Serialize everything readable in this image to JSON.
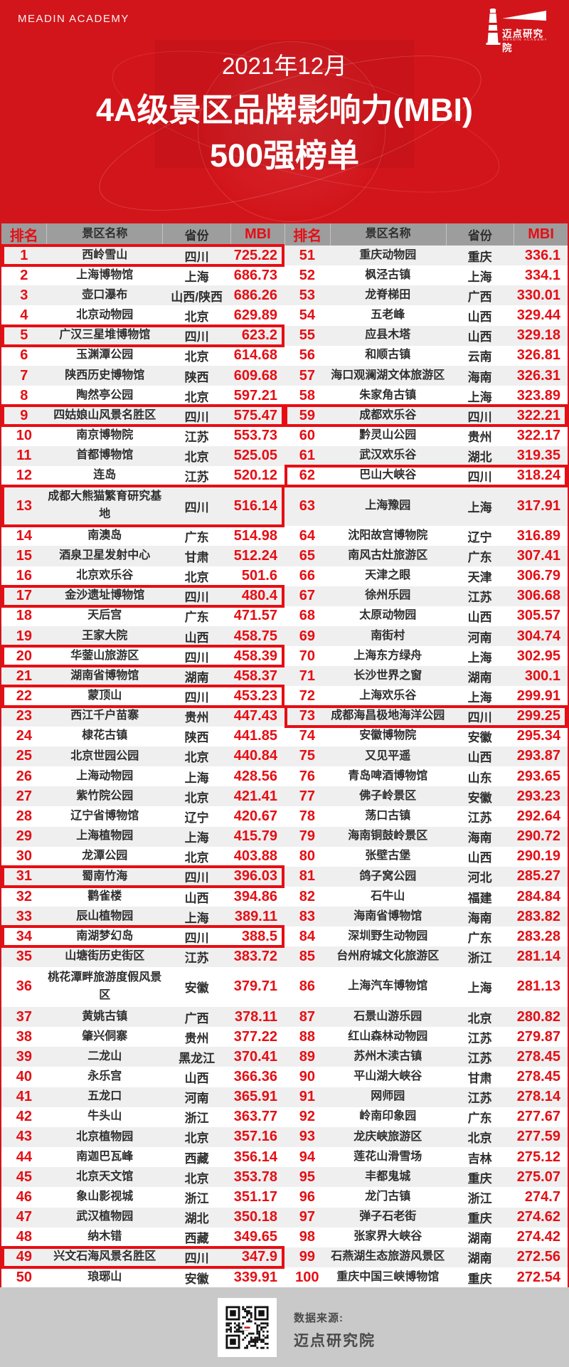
{
  "brand": {
    "academy": "MEADIN ACADEMY",
    "logo_text": "迈点研究院",
    "logo_sub": "MEADIN ACADEMY"
  },
  "title": {
    "period": "2021年12月",
    "line1": "4A级景区品牌影响力(MBI)",
    "line2": "500强榜单"
  },
  "icons": {
    "logo": "lighthouse-logo",
    "qr": "qr-code"
  },
  "colors": {
    "background_red": "#d2151b",
    "accent_red": "#e60e14",
    "header_gray": "#9d9d9d",
    "row_stripe": "#efefef",
    "footer_gray": "#c9c9c9",
    "text_dark": "#2e2e2e",
    "footer_text": "#4a4a4a"
  },
  "table": {
    "headers": {
      "rank": "排名",
      "name": "景区名称",
      "province": "省份",
      "mbi": "MBI"
    },
    "left": [
      {
        "rank": "1",
        "name": "西岭雪山",
        "province": "四川",
        "mbi": "725.22",
        "hl": true
      },
      {
        "rank": "2",
        "name": "上海博物馆",
        "province": "上海",
        "mbi": "686.73"
      },
      {
        "rank": "3",
        "name": "壶口瀑布",
        "province": "山西/陕西",
        "mbi": "686.26"
      },
      {
        "rank": "4",
        "name": "北京动物园",
        "province": "北京",
        "mbi": "629.89"
      },
      {
        "rank": "5",
        "name": "广汉三星堆博物馆",
        "province": "四川",
        "mbi": "623.2",
        "hl": true
      },
      {
        "rank": "6",
        "name": "玉渊潭公园",
        "province": "北京",
        "mbi": "614.68"
      },
      {
        "rank": "7",
        "name": "陕西历史博物馆",
        "province": "陕西",
        "mbi": "609.68"
      },
      {
        "rank": "8",
        "name": "陶然亭公园",
        "province": "北京",
        "mbi": "597.21"
      },
      {
        "rank": "9",
        "name": "四姑娘山风景名胜区",
        "province": "四川",
        "mbi": "575.47",
        "hl": true
      },
      {
        "rank": "10",
        "name": "南京博物院",
        "province": "江苏",
        "mbi": "553.73"
      },
      {
        "rank": "11",
        "name": "首都博物馆",
        "province": "北京",
        "mbi": "525.05"
      },
      {
        "rank": "12",
        "name": "连岛",
        "province": "江苏",
        "mbi": "520.12"
      },
      {
        "rank": "13",
        "name": "成都大熊猫繁育研究基地",
        "province": "四川",
        "mbi": "516.14",
        "hl": true
      },
      {
        "rank": "14",
        "name": "南澳岛",
        "province": "广东",
        "mbi": "514.98"
      },
      {
        "rank": "15",
        "name": "酒泉卫星发射中心",
        "province": "甘肃",
        "mbi": "512.24"
      },
      {
        "rank": "16",
        "name": "北京欢乐谷",
        "province": "北京",
        "mbi": "501.6"
      },
      {
        "rank": "17",
        "name": "金沙遗址博物馆",
        "province": "四川",
        "mbi": "480.4",
        "hl": true
      },
      {
        "rank": "18",
        "name": "天后宫",
        "province": "广东",
        "mbi": "471.57"
      },
      {
        "rank": "19",
        "name": "王家大院",
        "province": "山西",
        "mbi": "458.75"
      },
      {
        "rank": "20",
        "name": "华蓥山旅游区",
        "province": "四川",
        "mbi": "458.39",
        "hl": true
      },
      {
        "rank": "21",
        "name": "湖南省博物馆",
        "province": "湖南",
        "mbi": "458.37"
      },
      {
        "rank": "22",
        "name": "蒙顶山",
        "province": "四川",
        "mbi": "453.23",
        "hl": true
      },
      {
        "rank": "23",
        "name": "西江千户苗寨",
        "province": "贵州",
        "mbi": "447.43"
      },
      {
        "rank": "24",
        "name": "棣花古镇",
        "province": "陕西",
        "mbi": "441.85"
      },
      {
        "rank": "25",
        "name": "北京世园公园",
        "province": "北京",
        "mbi": "440.84"
      },
      {
        "rank": "26",
        "name": "上海动物园",
        "province": "上海",
        "mbi": "428.56"
      },
      {
        "rank": "27",
        "name": "紫竹院公园",
        "province": "北京",
        "mbi": "421.41"
      },
      {
        "rank": "28",
        "name": "辽宁省博物馆",
        "province": "辽宁",
        "mbi": "420.67"
      },
      {
        "rank": "29",
        "name": "上海植物园",
        "province": "上海",
        "mbi": "415.79"
      },
      {
        "rank": "30",
        "name": "龙潭公园",
        "province": "北京",
        "mbi": "403.88"
      },
      {
        "rank": "31",
        "name": "蜀南竹海",
        "province": "四川",
        "mbi": "396.03",
        "hl": true
      },
      {
        "rank": "32",
        "name": "鹳雀楼",
        "province": "山西",
        "mbi": "394.86"
      },
      {
        "rank": "33",
        "name": "辰山植物园",
        "province": "上海",
        "mbi": "389.11"
      },
      {
        "rank": "34",
        "name": "南湖梦幻岛",
        "province": "四川",
        "mbi": "388.5",
        "hl": true
      },
      {
        "rank": "35",
        "name": "山塘街历史街区",
        "province": "江苏",
        "mbi": "383.72"
      },
      {
        "rank": "36",
        "name": "桃花潭畔旅游度假风景区",
        "province": "安徽",
        "mbi": "379.71"
      },
      {
        "rank": "37",
        "name": "黄姚古镇",
        "province": "广西",
        "mbi": "378.11"
      },
      {
        "rank": "38",
        "name": "肇兴侗寨",
        "province": "贵州",
        "mbi": "377.22"
      },
      {
        "rank": "39",
        "name": "二龙山",
        "province": "黑龙江",
        "mbi": "370.41"
      },
      {
        "rank": "40",
        "name": "永乐宫",
        "province": "山西",
        "mbi": "366.36"
      },
      {
        "rank": "41",
        "name": "五龙口",
        "province": "河南",
        "mbi": "365.91"
      },
      {
        "rank": "42",
        "name": "牛头山",
        "province": "浙江",
        "mbi": "363.77"
      },
      {
        "rank": "43",
        "name": "北京植物园",
        "province": "北京",
        "mbi": "357.16"
      },
      {
        "rank": "44",
        "name": "南迦巴瓦峰",
        "province": "西藏",
        "mbi": "356.14"
      },
      {
        "rank": "45",
        "name": "北京天文馆",
        "province": "北京",
        "mbi": "353.78"
      },
      {
        "rank": "46",
        "name": "象山影视城",
        "province": "浙江",
        "mbi": "351.17"
      },
      {
        "rank": "47",
        "name": "武汉植物园",
        "province": "湖北",
        "mbi": "350.18"
      },
      {
        "rank": "48",
        "name": "纳木错",
        "province": "西藏",
        "mbi": "349.65"
      },
      {
        "rank": "49",
        "name": "兴文石海风景名胜区",
        "province": "四川",
        "mbi": "347.9",
        "hl": true
      },
      {
        "rank": "50",
        "name": "琅琊山",
        "province": "安徽",
        "mbi": "339.91"
      }
    ],
    "right": [
      {
        "rank": "51",
        "name": "重庆动物园",
        "province": "重庆",
        "mbi": "336.1"
      },
      {
        "rank": "52",
        "name": "枫泾古镇",
        "province": "上海",
        "mbi": "334.1"
      },
      {
        "rank": "53",
        "name": "龙脊梯田",
        "province": "广西",
        "mbi": "330.01"
      },
      {
        "rank": "54",
        "name": "五老峰",
        "province": "山西",
        "mbi": "329.44"
      },
      {
        "rank": "55",
        "name": "应县木塔",
        "province": "山西",
        "mbi": "329.18"
      },
      {
        "rank": "56",
        "name": "和顺古镇",
        "province": "云南",
        "mbi": "326.81"
      },
      {
        "rank": "57",
        "name": "海口观澜湖文体旅游区",
        "province": "海南",
        "mbi": "326.31"
      },
      {
        "rank": "58",
        "name": "朱家角古镇",
        "province": "上海",
        "mbi": "323.89"
      },
      {
        "rank": "59",
        "name": "成都欢乐谷",
        "province": "四川",
        "mbi": "322.21",
        "hl": true
      },
      {
        "rank": "60",
        "name": "黔灵山公园",
        "province": "贵州",
        "mbi": "322.17"
      },
      {
        "rank": "61",
        "name": "武汉欢乐谷",
        "province": "湖北",
        "mbi": "319.35"
      },
      {
        "rank": "62",
        "name": "巴山大峡谷",
        "province": "四川",
        "mbi": "318.24",
        "hl": true
      },
      {
        "rank": "63",
        "name": "上海豫园",
        "province": "上海",
        "mbi": "317.91"
      },
      {
        "rank": "64",
        "name": "沈阳故宫博物院",
        "province": "辽宁",
        "mbi": "316.89"
      },
      {
        "rank": "65",
        "name": "南风古灶旅游区",
        "province": "广东",
        "mbi": "307.41"
      },
      {
        "rank": "66",
        "name": "天津之眼",
        "province": "天津",
        "mbi": "306.79"
      },
      {
        "rank": "67",
        "name": "徐州乐园",
        "province": "江苏",
        "mbi": "306.68"
      },
      {
        "rank": "68",
        "name": "太原动物园",
        "province": "山西",
        "mbi": "305.57"
      },
      {
        "rank": "69",
        "name": "南街村",
        "province": "河南",
        "mbi": "304.74"
      },
      {
        "rank": "70",
        "name": "上海东方绿舟",
        "province": "上海",
        "mbi": "302.95"
      },
      {
        "rank": "71",
        "name": "长沙世界之窗",
        "province": "湖南",
        "mbi": "300.1"
      },
      {
        "rank": "72",
        "name": "上海欢乐谷",
        "province": "上海",
        "mbi": "299.91"
      },
      {
        "rank": "73",
        "name": "成都海昌极地海洋公园",
        "province": "四川",
        "mbi": "299.25",
        "hl": true
      },
      {
        "rank": "74",
        "name": "安徽博物院",
        "province": "安徽",
        "mbi": "295.34"
      },
      {
        "rank": "75",
        "name": "又见平遥",
        "province": "山西",
        "mbi": "293.87"
      },
      {
        "rank": "76",
        "name": "青岛啤酒博物馆",
        "province": "山东",
        "mbi": "293.65"
      },
      {
        "rank": "77",
        "name": "佛子岭景区",
        "province": "安徽",
        "mbi": "293.23"
      },
      {
        "rank": "78",
        "name": "荡口古镇",
        "province": "江苏",
        "mbi": "292.64"
      },
      {
        "rank": "79",
        "name": "海南铜鼓岭景区",
        "province": "海南",
        "mbi": "290.72"
      },
      {
        "rank": "80",
        "name": "张壁古堡",
        "province": "山西",
        "mbi": "290.19"
      },
      {
        "rank": "81",
        "name": "鸽子窝公园",
        "province": "河北",
        "mbi": "285.27"
      },
      {
        "rank": "82",
        "name": "石牛山",
        "province": "福建",
        "mbi": "284.84"
      },
      {
        "rank": "83",
        "name": "海南省博物馆",
        "province": "海南",
        "mbi": "283.82"
      },
      {
        "rank": "84",
        "name": "深圳野生动物园",
        "province": "广东",
        "mbi": "283.28"
      },
      {
        "rank": "85",
        "name": "台州府城文化旅游区",
        "province": "浙江",
        "mbi": "281.14"
      },
      {
        "rank": "86",
        "name": "上海汽车博物馆",
        "province": "上海",
        "mbi": "281.13"
      },
      {
        "rank": "87",
        "name": "石景山游乐园",
        "province": "北京",
        "mbi": "280.82"
      },
      {
        "rank": "88",
        "name": "红山森林动物园",
        "province": "江苏",
        "mbi": "279.87"
      },
      {
        "rank": "89",
        "name": "苏州木渎古镇",
        "province": "江苏",
        "mbi": "278.45"
      },
      {
        "rank": "90",
        "name": "平山湖大峡谷",
        "province": "甘肃",
        "mbi": "278.45"
      },
      {
        "rank": "91",
        "name": "网师园",
        "province": "江苏",
        "mbi": "278.14"
      },
      {
        "rank": "92",
        "name": "岭南印象园",
        "province": "广东",
        "mbi": "277.67"
      },
      {
        "rank": "93",
        "name": "龙庆峡旅游区",
        "province": "北京",
        "mbi": "277.59"
      },
      {
        "rank": "94",
        "name": "莲花山滑雪场",
        "province": "吉林",
        "mbi": "275.12"
      },
      {
        "rank": "95",
        "name": "丰都鬼城",
        "province": "重庆",
        "mbi": "275.07"
      },
      {
        "rank": "96",
        "name": "龙门古镇",
        "province": "浙江",
        "mbi": "274.7"
      },
      {
        "rank": "97",
        "name": "弹子石老街",
        "province": "重庆",
        "mbi": "274.62"
      },
      {
        "rank": "98",
        "name": "张家界大峡谷",
        "province": "湖南",
        "mbi": "274.42"
      },
      {
        "rank": "99",
        "name": "石燕湖生态旅游风景区",
        "province": "湖南",
        "mbi": "272.56"
      },
      {
        "rank": "100",
        "name": "重庆中国三峡博物馆",
        "province": "重庆",
        "mbi": "272.54"
      }
    ]
  },
  "footer": {
    "source_label": "数据来源:",
    "source_name": "迈点研究院"
  }
}
